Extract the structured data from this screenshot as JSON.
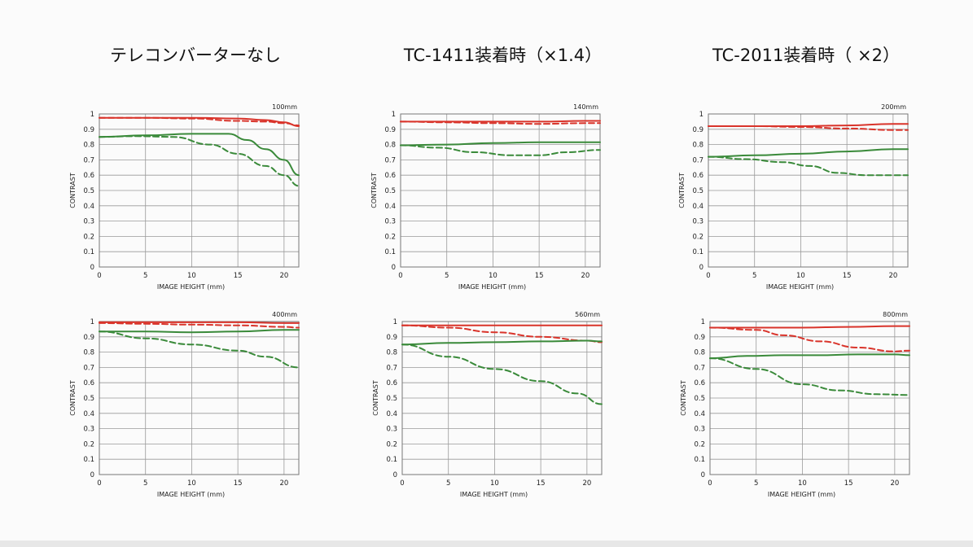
{
  "titles": {
    "no_tc": "テレコンバーターなし",
    "tc1411": "TC-1411装着時（×1.4）",
    "tc2011": "TC-2011装着時（ ×2）"
  },
  "colors": {
    "red": "#d9342b",
    "green": "#3a8a3a"
  },
  "chart_data": [
    {
      "type": "line",
      "focal_label": "100mm",
      "xlabel": "IMAGE HEIGHT (mm)",
      "ylabel": "CONTRAST",
      "xlim": [
        0,
        21.6
      ],
      "ylim": [
        0,
        1
      ],
      "xticks": [
        0,
        5,
        10,
        15,
        20
      ],
      "yticks": [
        0,
        0.1,
        0.2,
        0.3,
        0.4,
        0.5,
        0.6,
        0.7,
        0.8,
        0.9,
        1
      ],
      "grid": true,
      "series": [
        {
          "color": "red",
          "style": "solid",
          "x": [
            0,
            5,
            10,
            15,
            18,
            20,
            21.6
          ],
          "y": [
            0.975,
            0.975,
            0.975,
            0.97,
            0.96,
            0.945,
            0.92
          ]
        },
        {
          "color": "red",
          "style": "dashed",
          "x": [
            0,
            5,
            10,
            15,
            18,
            20,
            21.6
          ],
          "y": [
            0.975,
            0.975,
            0.97,
            0.955,
            0.95,
            0.94,
            0.925
          ]
        },
        {
          "color": "green",
          "style": "solid",
          "x": [
            0,
            5,
            10,
            14,
            16,
            18,
            20,
            21.6
          ],
          "y": [
            0.85,
            0.86,
            0.87,
            0.87,
            0.83,
            0.77,
            0.7,
            0.6
          ]
        },
        {
          "color": "green",
          "style": "dashed",
          "x": [
            0,
            4,
            8,
            12,
            15,
            18,
            20,
            21.6
          ],
          "y": [
            0.85,
            0.855,
            0.85,
            0.8,
            0.74,
            0.66,
            0.6,
            0.53
          ]
        }
      ]
    },
    {
      "type": "line",
      "focal_label": "140mm",
      "xlabel": "IMAGE HEIGHT (mm)",
      "ylabel": "CONTRAST",
      "xlim": [
        0,
        21.6
      ],
      "ylim": [
        0,
        1
      ],
      "xticks": [
        0,
        5,
        10,
        15,
        20
      ],
      "yticks": [
        0,
        0.1,
        0.2,
        0.3,
        0.4,
        0.5,
        0.6,
        0.7,
        0.8,
        0.9,
        1
      ],
      "grid": true,
      "series": [
        {
          "color": "red",
          "style": "solid",
          "x": [
            0,
            5,
            10,
            15,
            20,
            21.6
          ],
          "y": [
            0.95,
            0.95,
            0.95,
            0.95,
            0.955,
            0.955
          ]
        },
        {
          "color": "red",
          "style": "dashed",
          "x": [
            0,
            5,
            10,
            15,
            20,
            21.6
          ],
          "y": [
            0.95,
            0.945,
            0.94,
            0.935,
            0.94,
            0.94
          ]
        },
        {
          "color": "green",
          "style": "solid",
          "x": [
            0,
            5,
            10,
            15,
            20,
            21.6
          ],
          "y": [
            0.795,
            0.8,
            0.81,
            0.815,
            0.815,
            0.815
          ]
        },
        {
          "color": "green",
          "style": "dashed",
          "x": [
            0,
            4,
            8,
            12,
            15,
            18,
            21.6
          ],
          "y": [
            0.795,
            0.78,
            0.75,
            0.73,
            0.73,
            0.75,
            0.765
          ]
        }
      ]
    },
    {
      "type": "line",
      "focal_label": "200mm",
      "xlabel": "IMAGE HEIGHT (mm)",
      "ylabel": "CONTRAST",
      "xlim": [
        0,
        21.6
      ],
      "ylim": [
        0,
        1
      ],
      "xticks": [
        0,
        5,
        10,
        15,
        20
      ],
      "yticks": [
        0,
        0.1,
        0.2,
        0.3,
        0.4,
        0.5,
        0.6,
        0.7,
        0.8,
        0.9,
        1
      ],
      "grid": true,
      "series": [
        {
          "color": "red",
          "style": "solid",
          "x": [
            0,
            5,
            10,
            15,
            20,
            21.6
          ],
          "y": [
            0.92,
            0.92,
            0.92,
            0.925,
            0.935,
            0.935
          ]
        },
        {
          "color": "red",
          "style": "dashed",
          "x": [
            0,
            5,
            10,
            15,
            20,
            21.6
          ],
          "y": [
            0.92,
            0.92,
            0.915,
            0.905,
            0.895,
            0.895
          ]
        },
        {
          "color": "green",
          "style": "solid",
          "x": [
            0,
            5,
            10,
            15,
            20,
            21.6
          ],
          "y": [
            0.72,
            0.73,
            0.74,
            0.755,
            0.77,
            0.77
          ]
        },
        {
          "color": "green",
          "style": "dashed",
          "x": [
            0,
            4,
            8,
            11,
            14,
            17,
            20,
            21.6
          ],
          "y": [
            0.72,
            0.705,
            0.685,
            0.66,
            0.615,
            0.6,
            0.6,
            0.6
          ]
        }
      ]
    },
    {
      "type": "line",
      "focal_label": "400mm",
      "xlabel": "IMAGE HEIGHT (mm)",
      "ylabel": "CONTRAST",
      "xlim": [
        0,
        21.6
      ],
      "ylim": [
        0,
        1
      ],
      "xticks": [
        0,
        5,
        10,
        15,
        20
      ],
      "yticks": [
        0,
        0.1,
        0.2,
        0.3,
        0.4,
        0.5,
        0.6,
        0.7,
        0.8,
        0.9,
        1
      ],
      "grid": true,
      "series": [
        {
          "color": "red",
          "style": "solid",
          "x": [
            0,
            5,
            10,
            15,
            20,
            21.6
          ],
          "y": [
            0.995,
            0.995,
            0.995,
            0.995,
            0.99,
            0.99
          ]
        },
        {
          "color": "red",
          "style": "dashed",
          "x": [
            0,
            5,
            10,
            15,
            20,
            21.6
          ],
          "y": [
            0.99,
            0.985,
            0.98,
            0.975,
            0.965,
            0.96
          ]
        },
        {
          "color": "green",
          "style": "solid",
          "x": [
            0,
            5,
            10,
            15,
            20,
            21.6
          ],
          "y": [
            0.935,
            0.935,
            0.93,
            0.935,
            0.945,
            0.945
          ]
        },
        {
          "color": "green",
          "style": "dashed",
          "x": [
            0,
            5,
            10,
            15,
            18,
            21.6
          ],
          "y": [
            0.935,
            0.89,
            0.85,
            0.81,
            0.77,
            0.7
          ]
        }
      ]
    },
    {
      "type": "line",
      "focal_label": "560mm",
      "xlabel": "IMAGE HEIGHT (mm)",
      "ylabel": "CONTRAST",
      "xlim": [
        0,
        21.6
      ],
      "ylim": [
        0,
        1
      ],
      "xticks": [
        0,
        5,
        10,
        15,
        20
      ],
      "yticks": [
        0,
        0.1,
        0.2,
        0.3,
        0.4,
        0.5,
        0.6,
        0.7,
        0.8,
        0.9,
        1
      ],
      "grid": true,
      "series": [
        {
          "color": "red",
          "style": "solid",
          "x": [
            0,
            5,
            10,
            15,
            20,
            21.6
          ],
          "y": [
            0.975,
            0.975,
            0.975,
            0.975,
            0.975,
            0.975
          ]
        },
        {
          "color": "red",
          "style": "dashed",
          "x": [
            0,
            5,
            10,
            15,
            20,
            21.6
          ],
          "y": [
            0.975,
            0.96,
            0.93,
            0.9,
            0.875,
            0.865
          ]
        },
        {
          "color": "green",
          "style": "solid",
          "x": [
            0,
            5,
            10,
            15,
            20,
            21.6
          ],
          "y": [
            0.85,
            0.86,
            0.865,
            0.87,
            0.875,
            0.87
          ]
        },
        {
          "color": "green",
          "style": "dashed",
          "x": [
            0,
            5,
            10,
            15,
            19,
            21.6
          ],
          "y": [
            0.85,
            0.77,
            0.69,
            0.61,
            0.53,
            0.46
          ]
        }
      ]
    },
    {
      "type": "line",
      "focal_label": "800mm",
      "xlabel": "IMAGE HEIGHT (mm)",
      "ylabel": "CONTRAST",
      "xlim": [
        0,
        21.6
      ],
      "ylim": [
        0,
        1
      ],
      "xticks": [
        0,
        5,
        10,
        15,
        20
      ],
      "yticks": [
        0,
        0.1,
        0.2,
        0.3,
        0.4,
        0.5,
        0.6,
        0.7,
        0.8,
        0.9,
        1
      ],
      "grid": true,
      "series": [
        {
          "color": "red",
          "style": "solid",
          "x": [
            0,
            5,
            10,
            15,
            20,
            21.6
          ],
          "y": [
            0.96,
            0.96,
            0.96,
            0.965,
            0.97,
            0.97
          ]
        },
        {
          "color": "red",
          "style": "dashed",
          "x": [
            0,
            5,
            8,
            12,
            16,
            20,
            21.6
          ],
          "y": [
            0.96,
            0.945,
            0.91,
            0.87,
            0.83,
            0.805,
            0.81
          ]
        },
        {
          "color": "green",
          "style": "solid",
          "x": [
            0,
            4,
            8,
            12,
            16,
            20,
            21.6
          ],
          "y": [
            0.76,
            0.775,
            0.78,
            0.78,
            0.785,
            0.785,
            0.78
          ]
        },
        {
          "color": "green",
          "style": "dashed",
          "x": [
            0,
            5,
            10,
            14,
            18,
            21.6
          ],
          "y": [
            0.76,
            0.69,
            0.59,
            0.55,
            0.525,
            0.52
          ]
        }
      ]
    }
  ]
}
